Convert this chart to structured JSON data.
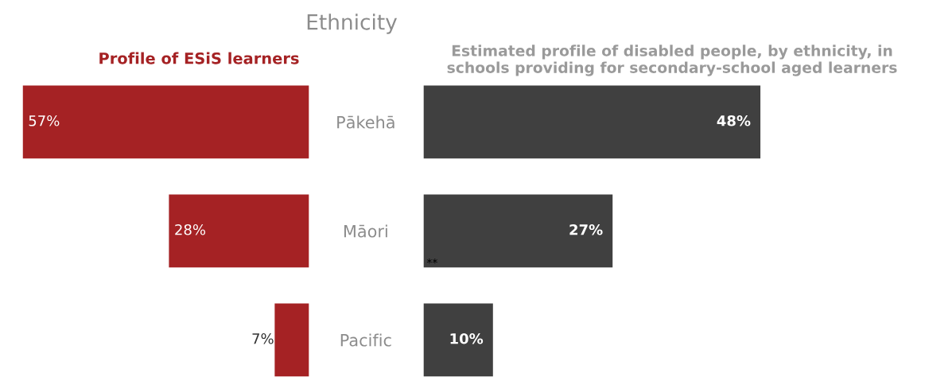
{
  "chart_data": [
    {
      "type": "bar",
      "orientation": "horizontal",
      "title": "Ethnicity",
      "subtitle": "Profile of ESiS learners",
      "categories": [
        "Pākehā",
        "Māori",
        "Pacific"
      ],
      "values": [
        57,
        28,
        7
      ],
      "color": "#a52224",
      "value_labels": [
        "57%",
        "28%",
        "7%"
      ]
    },
    {
      "type": "bar",
      "orientation": "horizontal",
      "title": "Estimated profile of disabled people, by ethnicity, in schools providing for secondary-school aged learners",
      "categories": [
        "Pākehā",
        "Māori",
        "Pacific"
      ],
      "values": [
        48,
        27,
        10
      ],
      "color": "#404040",
      "value_labels": [
        "48%",
        "27%",
        "10%"
      ],
      "tick_labels": false,
      "annotations": [
        {
          "text": "**",
          "x": 0,
          "y": "Māori"
        }
      ]
    }
  ]
}
